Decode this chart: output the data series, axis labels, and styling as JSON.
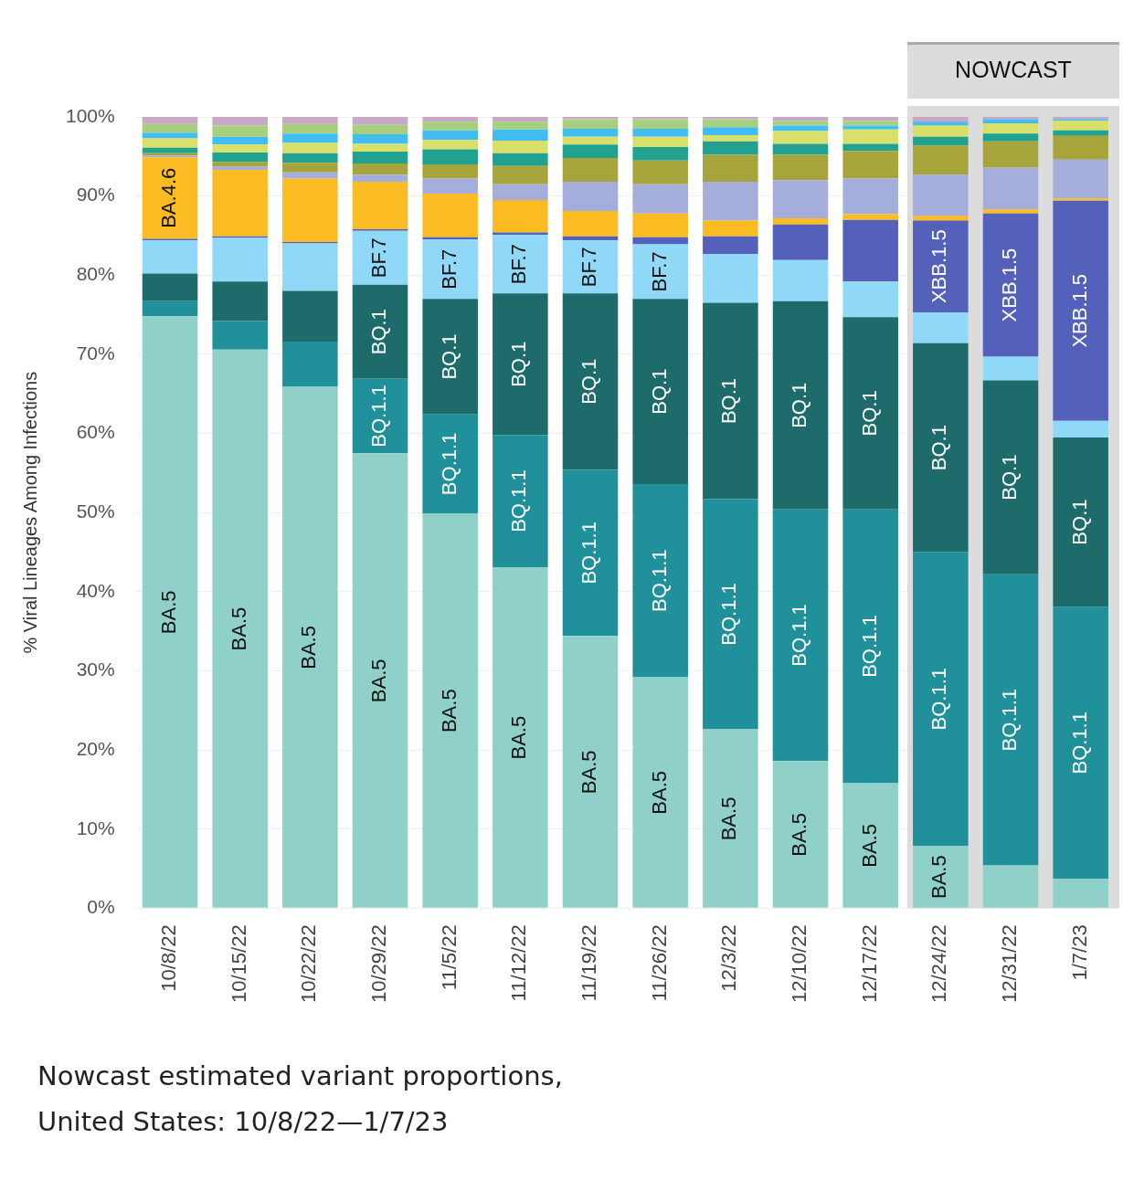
{
  "chart_data": {
    "type": "bar",
    "stacked": true,
    "categories": [
      "10/8/22",
      "10/15/22",
      "10/22/22",
      "10/29/22",
      "11/5/22",
      "11/12/22",
      "11/19/22",
      "11/26/22",
      "12/3/22",
      "12/10/22",
      "12/17/22",
      "12/24/22",
      "12/31/22",
      "1/7/23"
    ],
    "ylabel": "% Viral Lineages Among Infections",
    "ylim": [
      0,
      100
    ],
    "yticks": [
      {
        "value": 0,
        "label": "0%"
      },
      {
        "value": 10,
        "label": "10%"
      },
      {
        "value": 20,
        "label": "20%"
      },
      {
        "value": 30,
        "label": "30%"
      },
      {
        "value": 40,
        "label": "40%"
      },
      {
        "value": 50,
        "label": "50%"
      },
      {
        "value": 60,
        "label": "60%"
      },
      {
        "value": 70,
        "label": "70%"
      },
      {
        "value": 80,
        "label": "80%"
      },
      {
        "value": 90,
        "label": "90%"
      },
      {
        "value": 100,
        "label": "100%"
      }
    ],
    "grid": "y",
    "legend": false,
    "series": [
      {
        "color": "#8fd1c9",
        "values": [
          74.8,
          70.6,
          65.9,
          57.5,
          49.9,
          43.1,
          34.4,
          29.2,
          22.6,
          18.6,
          15.8,
          7.9,
          5.4,
          3.7
        ],
        "value_labels": [
          "BA.5",
          "BA.5",
          "BA.5",
          "BA.5",
          "BA.5",
          "BA.5",
          "BA.5",
          "BA.5",
          "BA.5",
          "BA.5",
          "BA.5",
          "BA.5",
          null,
          null
        ]
      },
      {
        "color": "#20909a",
        "values": [
          1.9,
          3.6,
          5.7,
          9.4,
          12.5,
          16.7,
          21.0,
          24.4,
          29.1,
          31.8,
          34.6,
          37.1,
          36.8,
          34.4
        ],
        "value_labels": [
          null,
          null,
          null,
          "BQ.1.1",
          "BQ.1.1",
          "BQ.1.1",
          "BQ.1.1",
          "BQ.1.1",
          "BQ.1.1",
          "BQ.1.1",
          "BQ.1.1",
          "BQ.1.1",
          "BQ.1.1",
          "BQ.1.1"
        ]
      },
      {
        "color": "#1e6b6b",
        "values": [
          3.5,
          5.0,
          6.4,
          11.9,
          14.6,
          17.9,
          22.3,
          23.4,
          24.8,
          26.3,
          24.3,
          26.4,
          24.5,
          21.4
        ],
        "value_labels": [
          null,
          null,
          null,
          "BQ.1",
          "BQ.1",
          "BQ.1",
          "BQ.1",
          "BQ.1",
          "BQ.1",
          "BQ.1",
          "BQ.1",
          "BQ.1",
          "BQ.1",
          "BQ.1"
        ]
      },
      {
        "color": "#8fd8f8",
        "values": [
          4.2,
          5.5,
          6.0,
          6.8,
          7.5,
          7.4,
          6.7,
          6.9,
          6.2,
          5.2,
          4.5,
          3.9,
          3.0,
          2.1
        ],
        "value_labels": [
          null,
          null,
          null,
          "BF.7",
          "BF.7",
          "BF.7",
          "BF.7",
          "BF.7",
          null,
          null,
          null,
          null,
          null,
          null
        ]
      },
      {
        "color": "#5361ba",
        "values": [
          0.2,
          0.2,
          0.2,
          0.2,
          0.3,
          0.3,
          0.5,
          0.9,
          2.2,
          4.5,
          7.8,
          11.6,
          18.1,
          27.8
        ],
        "value_labels": [
          null,
          null,
          null,
          null,
          null,
          null,
          null,
          null,
          null,
          null,
          null,
          "XBB.1.5",
          "XBB.1.5",
          "XBB.1.5"
        ]
      },
      {
        "color": "#fbbb22",
        "values": [
          10.3,
          8.4,
          8.0,
          6.0,
          5.5,
          4.1,
          3.2,
          3.0,
          2.0,
          0.8,
          0.7,
          0.6,
          0.5,
          0.3
        ],
        "value_labels": [
          "BA.4.6",
          null,
          null,
          null,
          null,
          null,
          null,
          null,
          null,
          null,
          null,
          null,
          null,
          null
        ]
      },
      {
        "color": "#a5addb",
        "values": [
          0.2,
          0.4,
          0.8,
          0.9,
          1.9,
          2.0,
          3.7,
          3.7,
          4.9,
          4.8,
          4.5,
          5.2,
          5.3,
          4.9
        ]
      },
      {
        "color": "#a8a43c",
        "values": [
          0.3,
          0.6,
          1.2,
          1.4,
          1.8,
          2.3,
          3.0,
          3.0,
          3.4,
          3.2,
          3.5,
          3.7,
          3.3,
          3.0
        ]
      },
      {
        "color": "#21a291",
        "values": [
          0.7,
          1.2,
          1.2,
          1.5,
          1.9,
          1.6,
          1.7,
          1.7,
          1.7,
          1.4,
          0.9,
          1.1,
          1.0,
          0.7
        ]
      },
      {
        "color": "#d8e06a",
        "values": [
          1.2,
          1.0,
          1.3,
          1.0,
          1.2,
          1.6,
          1.0,
          1.3,
          0.8,
          1.6,
          1.8,
          1.4,
          1.3,
          1.2
        ]
      },
      {
        "color": "#42bdf2",
        "values": [
          0.7,
          1.0,
          1.2,
          1.2,
          1.2,
          1.4,
          1.0,
          1.0,
          1.0,
          0.7,
          0.5,
          0.5,
          0.5,
          0.2
        ]
      },
      {
        "color": "#a6d07e",
        "values": [
          1.1,
          1.4,
          1.2,
          1.2,
          1.1,
          1.0,
          1.2,
          1.2,
          1.0,
          0.6,
          0.6,
          0,
          0,
          0
        ]
      },
      {
        "color": "#c7a9c4",
        "values": [
          0.9,
          1.1,
          0.9,
          1.0,
          0.6,
          0.6,
          0.3,
          0.3,
          0.3,
          0.5,
          0.5,
          0.6,
          0.3,
          0.3
        ]
      }
    ],
    "bands": [
      {
        "axis": "x",
        "from": "12/24/22",
        "to": "1/7/23",
        "label": "NOWCAST",
        "color": "#dcdcdc"
      }
    ],
    "annotations": [
      "Nowcast estimated variant proportions, United States: 10/8/22—1/7/23"
    ]
  }
}
